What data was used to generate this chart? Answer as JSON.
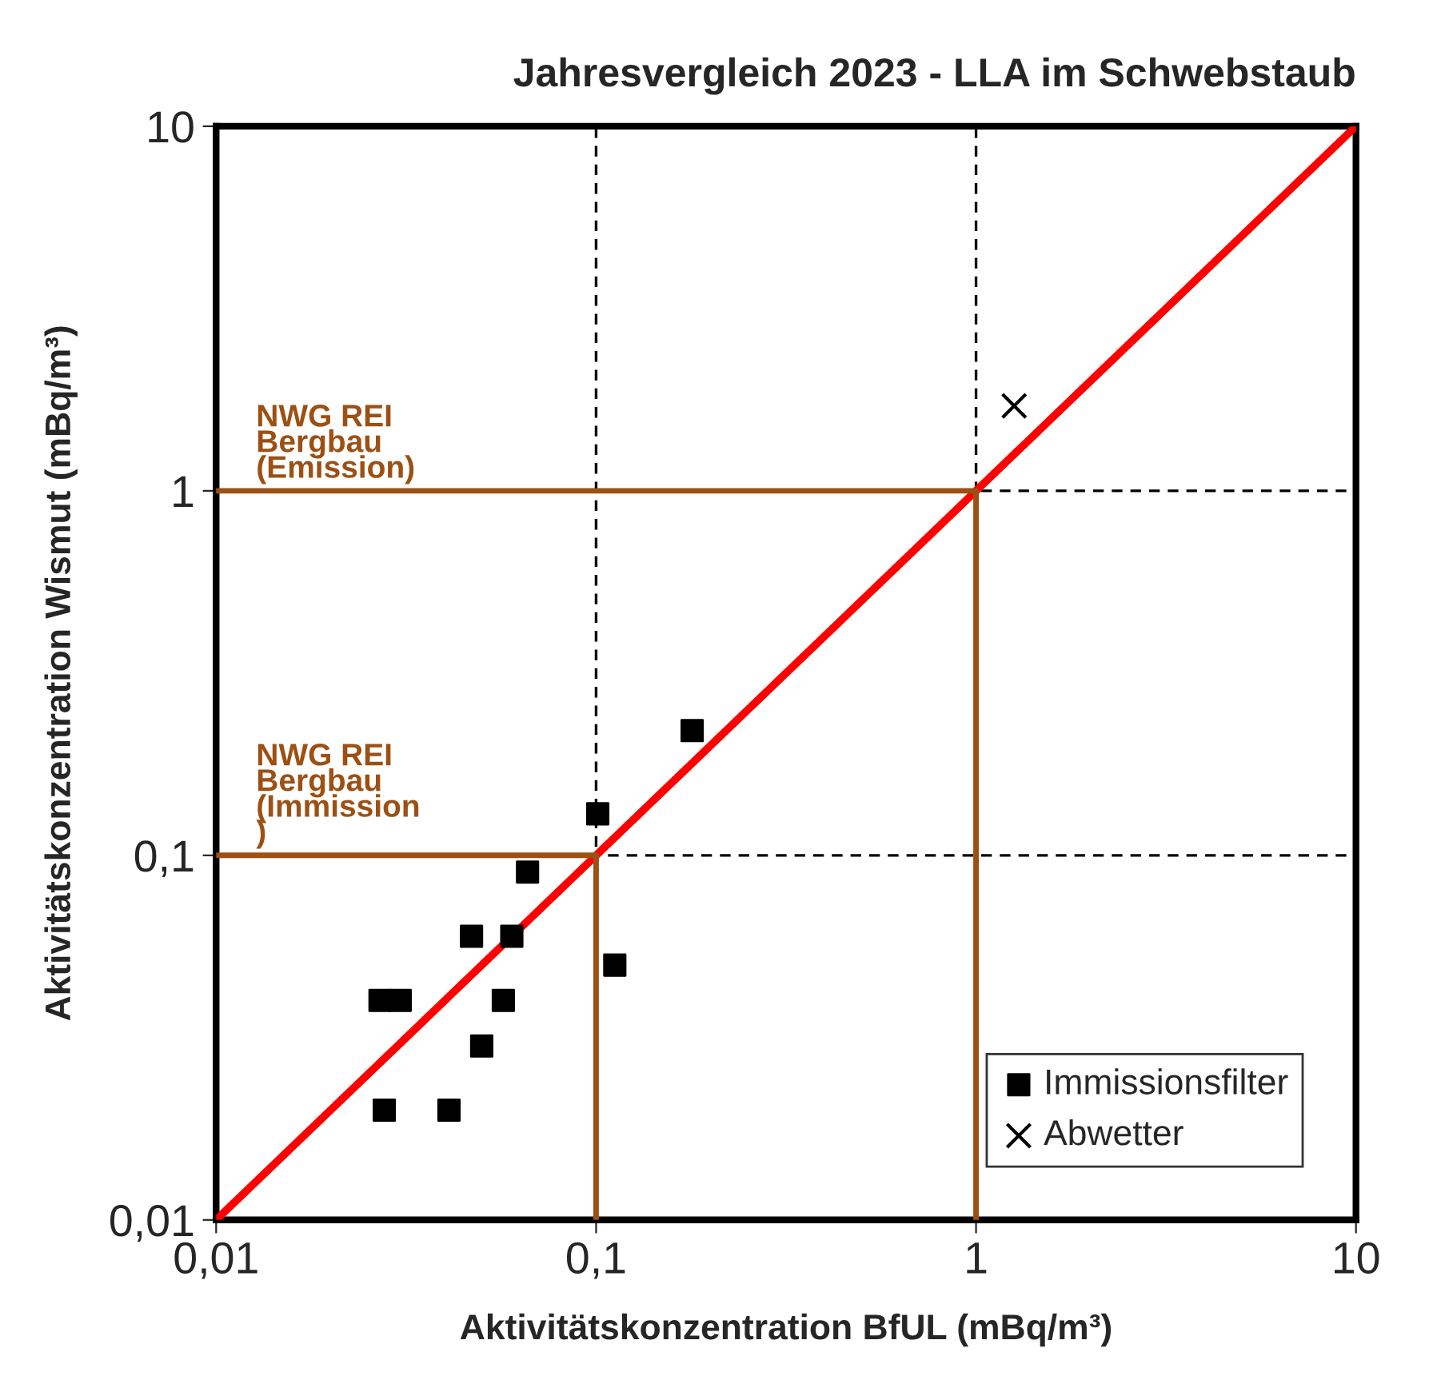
{
  "chart_data": {
    "type": "scatter",
    "title": "Jahresvergleich 2023 - LLA im Schwebstaub",
    "xlabel": "Aktivitätskonzentration BfUL (mBq/m³)",
    "ylabel": "Aktivitätskonzentration Wismut (mBq/m³)",
    "log": "xy",
    "xlim": [
      0.01,
      10
    ],
    "ylim": [
      0.01,
      10
    ],
    "xticks": [
      {
        "value": 0.01,
        "label": "0,01"
      },
      {
        "value": 0.1,
        "label": "0,1"
      },
      {
        "value": 1,
        "label": "1"
      },
      {
        "value": 10,
        "label": "10"
      }
    ],
    "yticks": [
      {
        "value": 0.01,
        "label": "0,01"
      },
      {
        "value": 0.1,
        "label": "0,1"
      },
      {
        "value": 1,
        "label": "1"
      },
      {
        "value": 10,
        "label": "10"
      }
    ],
    "grid": true,
    "legend": "bottom right",
    "series": [
      {
        "type": "line",
        "color": "#ff0000",
        "x": [
          0.01,
          10
        ],
        "values": [
          0.01,
          10
        ]
      },
      {
        "type": "line",
        "color": "#9c5014",
        "x": [
          0.01,
          1,
          1
        ],
        "values": [
          1,
          1,
          0.01
        ]
      },
      {
        "type": "line",
        "color": "#9c5014",
        "x": [
          0.01,
          0.1,
          0.1
        ],
        "values": [
          0.1,
          0.1,
          0.01
        ]
      },
      {
        "name": "Immissionsfilter",
        "color": "#000000",
        "marker": "square",
        "x": [
          0.027,
          0.0305,
          0.0277,
          0.041,
          0.047,
          0.05,
          0.057,
          0.06,
          0.066,
          0.101,
          0.112,
          0.179
        ],
        "values": [
          0.04,
          0.04,
          0.02,
          0.02,
          0.06,
          0.03,
          0.04,
          0.06,
          0.09,
          0.13,
          0.05,
          0.22
        ]
      },
      {
        "name": "Abwetter",
        "color": "#000000",
        "marker": "cross",
        "x": [
          1.26
        ],
        "values": [
          1.71
        ]
      }
    ],
    "annotations": [
      {
        "text": "NWG REI\nBergbau\n(Emission)",
        "x": 0.01,
        "y": 1
      },
      {
        "text": "NWG REI\nBergbau\n(Immission\n)",
        "x": 0.01,
        "y": 0.1
      }
    ]
  }
}
